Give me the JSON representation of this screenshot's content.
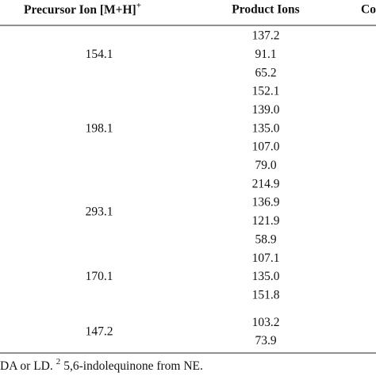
{
  "header": {
    "precursor": "Precursor Ion [M+H]",
    "precursor_sup": "+",
    "product": "Product Ions",
    "third": "Co"
  },
  "groups": [
    {
      "precursor": "154.1",
      "product_ions": [
        "137.2",
        "91.1",
        "65.2"
      ]
    },
    {
      "precursor": "198.1",
      "product_ions": [
        "152.1",
        "139.0",
        "135.0",
        "107.0",
        "79.0"
      ]
    },
    {
      "precursor": "293.1",
      "product_ions": [
        "214.9",
        "136.9",
        "121.9",
        "58.9"
      ]
    },
    {
      "precursor": "170.1",
      "product_ions": [
        "107.1",
        "135.0",
        "151.8"
      ]
    },
    {
      "precursor": "147.2",
      "product_ions": [
        "103.2",
        "73.9"
      ]
    }
  ],
  "footnote": {
    "before": "DA or LD.",
    "sup": "2",
    "after": "5,6-indolequinone from NE."
  }
}
